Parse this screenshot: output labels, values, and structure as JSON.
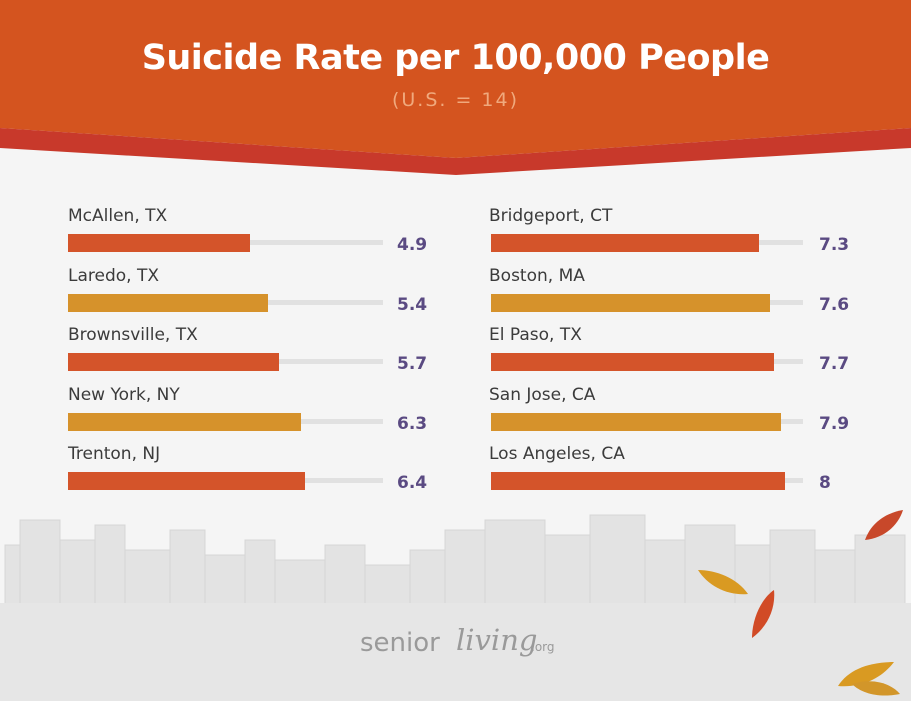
{
  "header": {
    "title": "Suicide Rate per 100,000 People",
    "subtitle": "(U.S. = 14)"
  },
  "colors": {
    "header_bg": "#d4541f",
    "header_stripe": "#c8392b",
    "bar_orange": "#d4542a",
    "bar_gold": "#d6922b",
    "value_text": "#5a4a82",
    "track": "#e1e1e1"
  },
  "chart_data": {
    "type": "bar",
    "orientation": "horizontal",
    "title": "Suicide Rate per 100,000 People",
    "subtitle": "(U.S. = 14)",
    "xlim": [
      0,
      8.5
    ],
    "grid": false,
    "columns": [
      {
        "categories": [
          "McAllen, TX",
          "Laredo, TX",
          "Brownsville, TX",
          "New York, NY",
          "Trenton, NJ"
        ],
        "values": [
          4.9,
          5.4,
          5.7,
          6.3,
          6.4
        ],
        "value_labels": [
          "4.9",
          "5.4",
          "5.7",
          "6.3",
          "6.4"
        ],
        "bar_colors": [
          "#d4542a",
          "#d6922b",
          "#d4542a",
          "#d6922b",
          "#d4542a"
        ]
      },
      {
        "categories": [
          "Bridgeport, CT",
          "Boston, MA",
          "El Paso, TX",
          "San Jose, CA",
          "Los Angeles, CA"
        ],
        "values": [
          7.3,
          7.6,
          7.7,
          7.9,
          8
        ],
        "value_labels": [
          "7.3",
          "7.6",
          "7.7",
          "7.9",
          "8"
        ],
        "bar_colors": [
          "#d4542a",
          "#d6922b",
          "#d4542a",
          "#d6922b",
          "#d4542a"
        ]
      }
    ]
  },
  "footer": {
    "logo_main": "senior",
    "logo_script": "living",
    "logo_suffix": ".org"
  },
  "decorations": {
    "skyline": "city-skyline-illustration",
    "leaves": "autumn-leaf-icon"
  }
}
